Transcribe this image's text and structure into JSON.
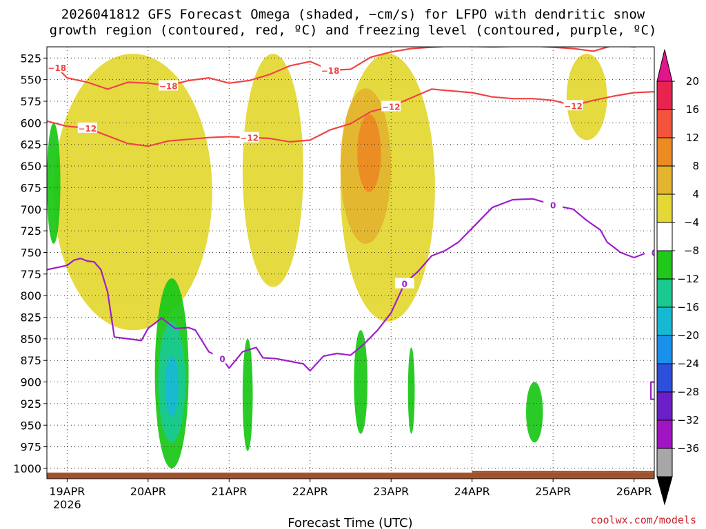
{
  "title_line1": "2026041812 GFS Forecast Omega (shaded, −cm/s) for LFPO with dendritic snow",
  "title_line2": "growth region (contoured, red, ºC) and freezing level (contoured, purple, ºC)",
  "credit": "coolwx.com/models",
  "chart_data": {
    "type": "heatmap",
    "title": "2026041812 GFS Forecast Omega (shaded, −cm/s) for LFPO with dendritic snow growth region (contoured, red, ºC) and freezing level (contoured, purple, ºC)",
    "xlabel": "Forecast Time (UTC)",
    "ylabel": "",
    "x_ticks": [
      "19APR",
      "20APR",
      "21APR",
      "22APR",
      "23APR",
      "24APR",
      "25APR",
      "26APR"
    ],
    "x_year": "2026",
    "x_range_hours": [
      -6,
      174
    ],
    "y_ticks": [
      525,
      550,
      575,
      600,
      625,
      650,
      675,
      700,
      725,
      750,
      775,
      800,
      825,
      850,
      875,
      900,
      925,
      950,
      975,
      1000
    ],
    "y_range_hPa": [
      512,
      1012
    ],
    "grid": true,
    "colorbar": {
      "ticks": [
        "20",
        "16",
        "12",
        "8",
        "4",
        "−4",
        "−8",
        "−12",
        "−16",
        "−20",
        "−24",
        "−28",
        "−32",
        "−36"
      ],
      "colors": [
        "#e8234f",
        "#f4543c",
        "#ec8a24",
        "#e3b52f",
        "#e4d836",
        "#ffffff",
        "#1fc81a",
        "#19c98f",
        "#17b8d2",
        "#1890ec",
        "#2c4fdc",
        "#6c1fc8",
        "#a114c3",
        "#a7a7a7"
      ],
      "top_arrow": "#e0168c",
      "bottom_arrow": "#000000"
    },
    "contours": {
      "temp_minus18_upper": {
        "label": "−18",
        "color": "#f04444",
        "points": [
          [
            -6,
            535
          ],
          [
            -3,
            536
          ],
          [
            0,
            548
          ],
          [
            6,
            553
          ],
          [
            12,
            561
          ],
          [
            18,
            553
          ],
          [
            24,
            554
          ],
          [
            30,
            557
          ],
          [
            36,
            551
          ],
          [
            42,
            548
          ],
          [
            48,
            554
          ],
          [
            54,
            551
          ],
          [
            60,
            544
          ],
          [
            66,
            534
          ],
          [
            72,
            529
          ],
          [
            78,
            539
          ],
          [
            84,
            538
          ],
          [
            90,
            524
          ],
          [
            96,
            518
          ],
          [
            102,
            514
          ],
          [
            114,
            511
          ],
          [
            126,
            512
          ],
          [
            138,
            511
          ],
          [
            150,
            514
          ],
          [
            156,
            517
          ],
          [
            162,
            510
          ],
          [
            168,
            512
          ],
          [
            174,
            508
          ]
        ]
      },
      "temp_minus12": {
        "label": "−12",
        "color": "#f04444",
        "points": [
          [
            -6,
            598
          ],
          [
            0,
            604
          ],
          [
            6,
            606
          ],
          [
            12,
            615
          ],
          [
            18,
            624
          ],
          [
            24,
            627
          ],
          [
            30,
            621
          ],
          [
            36,
            619
          ],
          [
            42,
            617
          ],
          [
            48,
            616
          ],
          [
            54,
            617
          ],
          [
            60,
            618
          ],
          [
            66,
            622
          ],
          [
            72,
            620
          ],
          [
            78,
            608
          ],
          [
            84,
            601
          ],
          [
            90,
            587
          ],
          [
            96,
            581
          ],
          [
            102,
            571
          ],
          [
            108,
            561
          ],
          [
            114,
            563
          ],
          [
            120,
            565
          ],
          [
            126,
            570
          ],
          [
            132,
            572
          ],
          [
            138,
            572
          ],
          [
            144,
            574
          ],
          [
            150,
            580
          ],
          [
            156,
            574
          ],
          [
            162,
            569
          ],
          [
            168,
            565
          ],
          [
            174,
            564
          ]
        ]
      },
      "freezing_level_0": {
        "label": "0",
        "color": "#9b1fc9",
        "points": [
          [
            -6,
            770
          ],
          [
            0,
            765
          ],
          [
            2,
            759
          ],
          [
            4,
            757
          ],
          [
            6,
            760
          ],
          [
            8,
            761
          ],
          [
            10,
            770
          ],
          [
            12,
            796
          ],
          [
            14,
            848
          ],
          [
            18,
            850
          ],
          [
            22,
            852
          ],
          [
            24,
            838
          ],
          [
            28,
            826
          ],
          [
            32,
            838
          ],
          [
            36,
            837
          ],
          [
            38,
            840
          ],
          [
            42,
            865
          ],
          [
            46,
            873
          ],
          [
            48,
            884
          ],
          [
            52,
            865
          ],
          [
            56,
            860
          ],
          [
            58,
            872
          ],
          [
            62,
            873
          ],
          [
            66,
            876
          ],
          [
            70,
            879
          ],
          [
            72,
            887
          ],
          [
            76,
            870
          ],
          [
            80,
            867
          ],
          [
            84,
            869
          ],
          [
            88,
            856
          ],
          [
            92,
            840
          ],
          [
            96,
            820
          ],
          [
            100,
            786
          ],
          [
            104,
            772
          ],
          [
            108,
            754
          ],
          [
            112,
            748
          ],
          [
            116,
            738
          ],
          [
            120,
            722
          ],
          [
            126,
            698
          ],
          [
            132,
            689
          ],
          [
            138,
            688
          ],
          [
            144,
            695
          ],
          [
            150,
            700
          ],
          [
            154,
            713
          ],
          [
            158,
            724
          ],
          [
            160,
            738
          ],
          [
            164,
            750
          ],
          [
            168,
            756
          ],
          [
            172,
            750
          ],
          [
            174,
            750
          ]
        ]
      },
      "freezing_level_segment_right": {
        "label": "",
        "color": "#9b1fc9",
        "points": [
          [
            174,
            900
          ],
          [
            173,
            900
          ],
          [
            173,
            920
          ],
          [
            174,
            920
          ]
        ]
      }
    },
    "omega_regions": [
      {
        "category": "4",
        "color": "#e4d836",
        "t": [
          -4,
          43
        ],
        "p": [
          520,
          840
        ]
      },
      {
        "category": "4",
        "color": "#e4d836",
        "t": [
          52,
          70
        ],
        "p": [
          520,
          790
        ]
      },
      {
        "category": "4",
        "color": "#e4d836",
        "t": [
          81,
          109
        ],
        "p": [
          520,
          830
        ]
      },
      {
        "category": "8",
        "color": "#e3b52f",
        "t": [
          81,
          96
        ],
        "p": [
          560,
          740
        ]
      },
      {
        "category": "12",
        "color": "#ec8a24",
        "t": [
          86,
          93
        ],
        "p": [
          590,
          680
        ]
      },
      {
        "category": "4",
        "color": "#e4d836",
        "t": [
          148,
          160
        ],
        "p": [
          520,
          620
        ]
      },
      {
        "category": "−4",
        "color": "#1fc81a",
        "t": [
          -6,
          -2
        ],
        "p": [
          600,
          740
        ]
      },
      {
        "category": "−4",
        "color": "#1fc81a",
        "t": [
          26,
          36
        ],
        "p": [
          780,
          1000
        ]
      },
      {
        "category": "−8",
        "color": "#19c98f",
        "t": [
          27,
          35
        ],
        "p": [
          830,
          970
        ]
      },
      {
        "category": "−12",
        "color": "#17b8d2",
        "t": [
          29,
          33
        ],
        "p": [
          870,
          940
        ]
      },
      {
        "category": "−4",
        "color": "#1fc81a",
        "t": [
          52,
          55
        ],
        "p": [
          850,
          980
        ]
      },
      {
        "category": "−4",
        "color": "#1fc81a",
        "t": [
          85,
          89
        ],
        "p": [
          840,
          960
        ]
      },
      {
        "category": "−4",
        "color": "#1fc81a",
        "t": [
          101,
          103
        ],
        "p": [
          860,
          960
        ]
      },
      {
        "category": "−4",
        "color": "#1fc81a",
        "t": [
          136,
          141
        ],
        "p": [
          900,
          970
        ]
      }
    ],
    "terrain_color": "#a0522d"
  }
}
